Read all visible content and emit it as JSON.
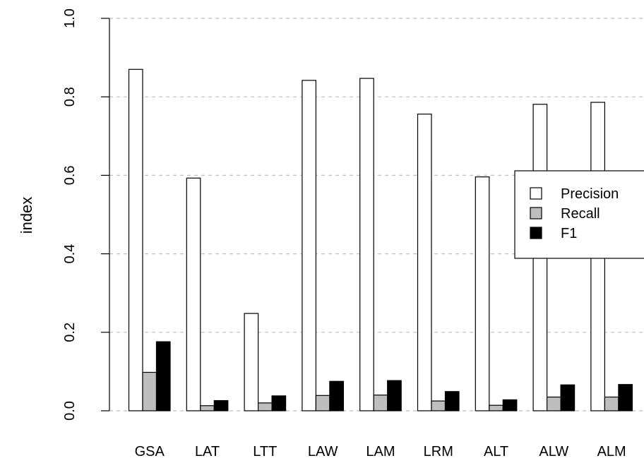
{
  "chart_data": {
    "type": "bar",
    "ylabel": "index",
    "ylim": [
      0,
      1
    ],
    "yticks": [
      "0.0",
      "0.2",
      "0.4",
      "0.6",
      "0.8",
      "1.0"
    ],
    "grid": "horizontal-dashed",
    "legend_position": "right",
    "categories": [
      "GSA",
      "LAT",
      "LTT",
      "LAW",
      "LAM",
      "LRM",
      "ALT",
      "ALW",
      "ALM"
    ],
    "series": [
      {
        "name": "Precision",
        "color": "#ffffff",
        "values": [
          0.87,
          0.593,
          0.248,
          0.842,
          0.847,
          0.756,
          0.596,
          0.781,
          0.786
        ]
      },
      {
        "name": "Recall",
        "color": "#bebebe",
        "values": [
          0.098,
          0.013,
          0.02,
          0.039,
          0.04,
          0.025,
          0.014,
          0.035,
          0.035
        ]
      },
      {
        "name": "F1",
        "color": "#000000",
        "values": [
          0.176,
          0.026,
          0.038,
          0.075,
          0.077,
          0.049,
          0.028,
          0.066,
          0.067
        ]
      }
    ]
  }
}
